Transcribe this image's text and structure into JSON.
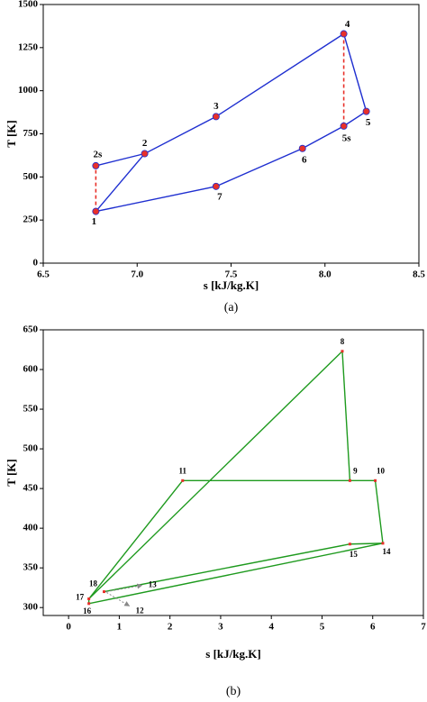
{
  "chart_data": [
    {
      "type": "line",
      "xlabel": "s [kJ/kg.K]",
      "ylabel": "T [K]",
      "caption": "(a)",
      "xlim": [
        6.5,
        8.5
      ],
      "xticks": [
        6.5,
        {
          "value": 7,
          "label": "7.0"
        },
        7.5,
        {
          "value": 8,
          "label": "8.0"
        },
        8.5
      ],
      "ylim": [
        0,
        1500
      ],
      "yticks": [
        0,
        250,
        500,
        750,
        1000,
        1250,
        1500
      ],
      "lines": [
        {
          "color": "#1f2fd0",
          "dashed": false,
          "x": [
            6.78,
            7.04,
            7.42,
            8.1,
            8.22,
            8.1,
            7.88,
            7.42,
            6.78
          ],
          "y": [
            300,
            635,
            850,
            1330,
            880,
            795,
            665,
            445,
            300
          ]
        },
        {
          "color": "#1f2fd0",
          "dashed": false,
          "x": [
            6.78,
            7.04
          ],
          "y": [
            565,
            635
          ]
        },
        {
          "color": "#e8302a",
          "dashed": true,
          "x": [
            6.78,
            6.78
          ],
          "y": [
            300,
            565
          ]
        },
        {
          "color": "#e8302a",
          "dashed": true,
          "x": [
            8.1,
            8.1
          ],
          "y": [
            1330,
            795
          ]
        }
      ],
      "points": {
        "color": "#e8302a",
        "labels": [
          "1",
          "2s",
          "2",
          "3",
          "4",
          "5",
          "5s",
          "6",
          "7"
        ],
        "x": [
          6.78,
          6.78,
          7.04,
          7.42,
          8.1,
          8.22,
          8.1,
          7.88,
          7.42
        ],
        "y": [
          300,
          565,
          635,
          850,
          1330,
          880,
          795,
          665,
          445
        ]
      },
      "arrows": []
    },
    {
      "type": "line",
      "xlabel": "s [kJ/kg.K]",
      "ylabel": "T [K]",
      "caption": "(b)",
      "xlim": [
        -0.5,
        7
      ],
      "xticks": [
        0,
        1,
        2,
        3,
        4,
        5,
        6,
        7
      ],
      "ylim": [
        290,
        650
      ],
      "yticks": [
        300,
        350,
        400,
        450,
        500,
        550,
        600,
        650
      ],
      "lines": [
        {
          "color": "#1e9a1e",
          "dashed": false,
          "x": [
            5.4,
            5.55
          ],
          "y": [
            623,
            460
          ]
        },
        {
          "color": "#1e9a1e",
          "dashed": false,
          "x": [
            2.25,
            6.05,
            6.2,
            0.4,
            0.4,
            5.4
          ],
          "y": [
            460,
            460,
            381,
            305,
            311,
            623
          ]
        },
        {
          "color": "#1e9a1e",
          "dashed": false,
          "x": [
            2.25,
            0.4
          ],
          "y": [
            460,
            311
          ]
        },
        {
          "color": "#1e9a1e",
          "dashed": false,
          "x": [
            0.7,
            5.55,
            6.2
          ],
          "y": [
            320,
            380,
            381
          ]
        }
      ],
      "points": {
        "color": "#e8302a",
        "labels": [
          "8",
          "9",
          "10",
          "11",
          "14",
          "15",
          "16",
          "17",
          "18"
        ],
        "x": [
          5.4,
          5.55,
          6.05,
          2.25,
          6.2,
          5.55,
          0.4,
          0.4,
          0.7
        ],
        "y": [
          623,
          460,
          460,
          460,
          381,
          380,
          305,
          311,
          320
        ]
      },
      "arrows": [
        {
          "label": "13",
          "x": [
            0.75,
            1.45
          ],
          "y": [
            320,
            328
          ]
        },
        {
          "label": "12",
          "x": [
            0.75,
            1.2
          ],
          "y": [
            319,
            302
          ]
        }
      ]
    }
  ]
}
